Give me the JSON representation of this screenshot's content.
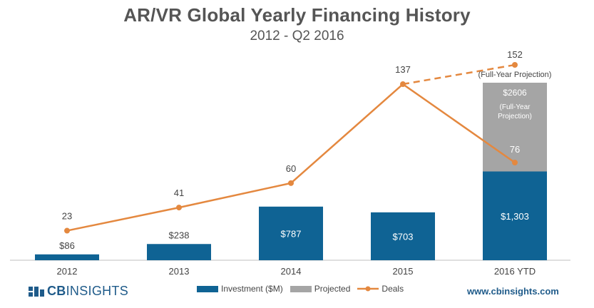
{
  "title": "AR/VR Global Yearly Financing History",
  "subtitle": "2012 - Q2 2016",
  "colors": {
    "investment": "#0f6394",
    "projected": "#a5a5a5",
    "deals": "#e4883f",
    "axis": "#bfbfbf",
    "text": "#444444"
  },
  "chart_data": {
    "type": "bar",
    "title": "AR/VR Global Yearly Financing History",
    "subtitle": "2012 - Q2 2016",
    "categories": [
      "2012",
      "2013",
      "2014",
      "2015",
      "2016 YTD"
    ],
    "series": [
      {
        "name": "Investment ($M)",
        "type": "bar",
        "values": [
          86,
          238,
          787,
          703,
          1303
        ],
        "labels": [
          "$86",
          "$238",
          "$787",
          "$703",
          "$1,303"
        ]
      },
      {
        "name": "Projected",
        "type": "bar-stacked",
        "total": 2606,
        "category": "2016 YTD",
        "label": "$2606",
        "note": "(Full-Year Projection)"
      },
      {
        "name": "Deals",
        "type": "line",
        "values": [
          23,
          41,
          60,
          137,
          76
        ]
      },
      {
        "name": "Deals projection",
        "type": "line-dashed",
        "from": 137,
        "to": 152,
        "label": "152",
        "note": "(Full-Year Projection)"
      }
    ],
    "ylim_investment": [
      0,
      2606
    ],
    "ylim_deals": [
      0,
      152
    ]
  },
  "legend": {
    "investment": "Investment ($M)",
    "projected": "Projected",
    "deals": "Deals"
  },
  "footer": {
    "logo_bold": "CB",
    "logo_rest": "INSIGHTS",
    "url": "www.cbinsights.com"
  }
}
